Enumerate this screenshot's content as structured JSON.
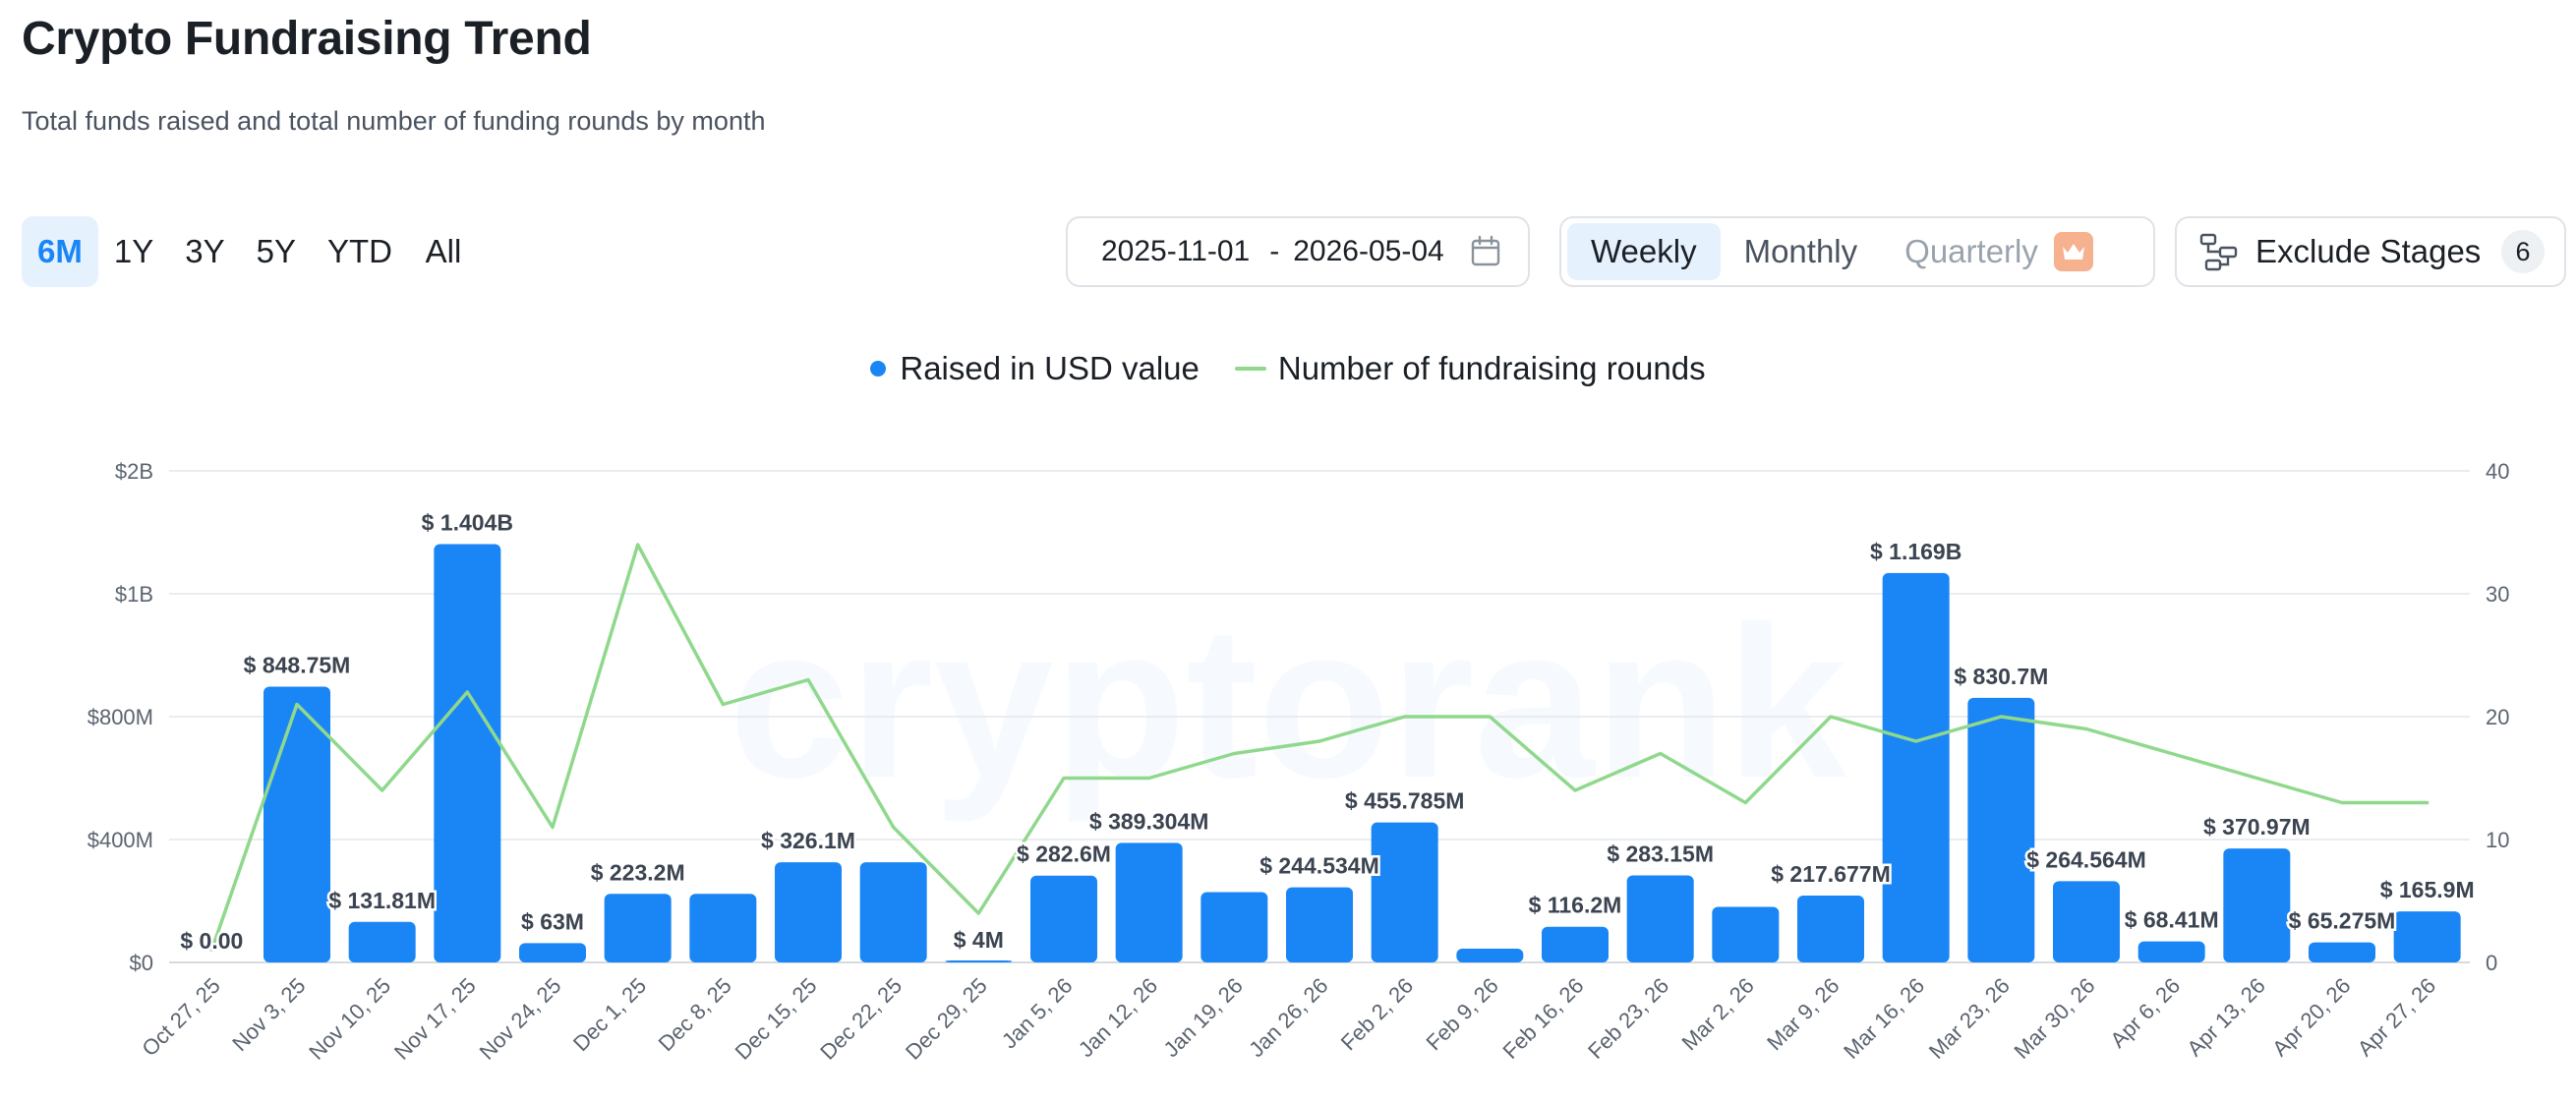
{
  "header": {
    "title": "Crypto Fundraising Trend",
    "subtitle": "Total funds raised and total number of funding rounds by month"
  },
  "range_buttons": [
    {
      "label": "6M",
      "active": true
    },
    {
      "label": "1Y",
      "active": false
    },
    {
      "label": "3Y",
      "active": false
    },
    {
      "label": "5Y",
      "active": false
    },
    {
      "label": "YTD",
      "active": false
    },
    {
      "label": "All",
      "active": false
    }
  ],
  "date_range": {
    "start": "2025-11-01",
    "separator": "-",
    "end": "2026-05-04",
    "icon": "calendar-icon"
  },
  "period_buttons": [
    {
      "label": "Weekly",
      "active": true
    },
    {
      "label": "Monthly",
      "active": false
    },
    {
      "label": "Quarterly",
      "active": false,
      "locked": true,
      "icon": "crown-icon"
    }
  ],
  "exclude_stages": {
    "label": "Exclude Stages",
    "count": "6",
    "icon": "stages-icon"
  },
  "watermark": "cryptorank",
  "colors": {
    "bar": "#1a86f5",
    "line": "#8fd88c",
    "accent": "#1a86f5",
    "active_bg": "#e6f1fe",
    "grid": "#e3e6ea",
    "crown_bg": "#f6b18f"
  },
  "chart_data": {
    "type": "bar",
    "title": "",
    "legend": {
      "placement": "top-center",
      "items": [
        {
          "label": "Raised in USD value",
          "marker": "dot"
        },
        {
          "label": "Number of fundraising rounds",
          "marker": "line"
        }
      ]
    },
    "categories": [
      "Oct 27, 25",
      "Nov 3, 25",
      "Nov 10, 25",
      "Nov 17, 25",
      "Nov 24, 25",
      "Dec 1, 25",
      "Dec 8, 25",
      "Dec 15, 25",
      "Dec 22, 25",
      "Dec 29, 25",
      "Jan 5, 26",
      "Jan 12, 26",
      "Jan 19, 26",
      "Jan 26, 26",
      "Feb 2, 26",
      "Feb 9, 26",
      "Feb 16, 26",
      "Feb 23, 26",
      "Mar 2, 26",
      "Mar 9, 26",
      "Mar 16, 26",
      "Mar 23, 26",
      "Mar 30, 26",
      "Apr 6, 26",
      "Apr 13, 26",
      "Apr 20, 26",
      "Apr 27, 26"
    ],
    "y_left": {
      "ticks": [
        {
          "value": 0,
          "label": "$0"
        },
        {
          "value": 400,
          "label": "$400M"
        },
        {
          "value": 800,
          "label": "$800M"
        },
        {
          "value": 1000,
          "label": "$1B"
        },
        {
          "value": 2000,
          "label": "$2B"
        }
      ],
      "unit": "USD millions",
      "scale": "piecewise-linear"
    },
    "y_right": {
      "ticks": [
        {
          "value": 0,
          "label": "0"
        },
        {
          "value": 10,
          "label": "10"
        },
        {
          "value": 20,
          "label": "20"
        },
        {
          "value": 30,
          "label": "30"
        },
        {
          "value": 40,
          "label": "40"
        }
      ],
      "ylim": [
        0,
        40
      ]
    },
    "grid": true,
    "series": [
      {
        "name": "Raised in USD value",
        "type": "bar",
        "axis": "left",
        "values": [
          0,
          848.75,
          131.81,
          1404,
          63,
          223.2,
          223.2,
          326.1,
          326.1,
          4,
          282.6,
          389.304,
          229,
          244.534,
          455.785,
          45,
          116.2,
          283.15,
          181,
          217.677,
          1169,
          830.7,
          264.564,
          68.41,
          370.97,
          65.275,
          165.9
        ],
        "labels": [
          "$ 0.00",
          "$ 848.75M",
          "$ 131.81M",
          "$ 1.404B",
          "$ 63M",
          "$ 223.2M",
          "",
          "$ 326.1M",
          "",
          "$ 4M",
          "$ 282.6M",
          "$ 389.304M",
          "",
          "$ 244.534M",
          "$ 455.785M",
          "",
          "$ 116.2M",
          "$ 283.15M",
          "",
          "$ 217.677M",
          "$ 1.169B",
          "$ 830.7M",
          "$ 264.564M",
          "$ 68.41M",
          "$ 370.97M",
          "$ 65.275M",
          "$ 165.9M"
        ]
      },
      {
        "name": "Number of fundraising rounds",
        "type": "line",
        "axis": "right",
        "values": [
          1,
          21,
          14,
          22,
          11,
          34,
          21,
          23,
          11,
          4,
          15,
          15,
          17,
          18,
          20,
          20,
          14,
          17,
          13,
          20,
          18,
          20,
          19,
          17,
          15,
          13,
          13
        ]
      }
    ]
  }
}
